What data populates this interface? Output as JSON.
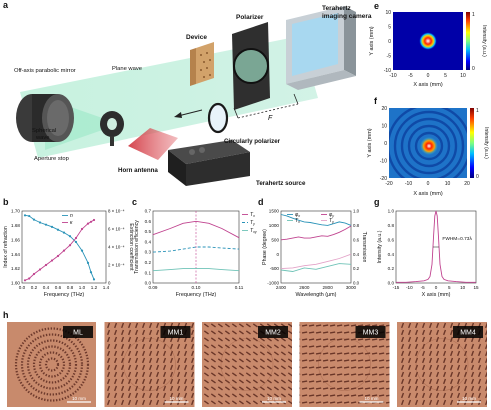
{
  "panel_letters": [
    "a",
    "b",
    "c",
    "d",
    "e",
    "f",
    "g",
    "h"
  ],
  "setup": {
    "labels": {
      "device": "Device",
      "polarizer": "Polarizer",
      "camera": "Terahertz\nimaging camera",
      "mirror": "Off-axis parabolic mirror",
      "plane_wave": "Plane wave",
      "spherical_wave": "Spherical\nwave",
      "aperture": "Aperture stop",
      "horn": "Horn antenna",
      "circ_polarizer": "Circularly polarizer",
      "source": "Terahertz source",
      "distance": "F"
    }
  },
  "map_e": {
    "xlabel": "X axis (mm)",
    "ylabel": "Y axis (mm)",
    "cbar_label": "Intensity (a.u.)",
    "xticks": [
      "-10",
      "-5",
      "0",
      "5",
      "10"
    ],
    "yticks": [
      "10",
      "5",
      "0",
      "-5",
      "-10"
    ],
    "cbar_ticks": [
      "1",
      "0"
    ]
  },
  "map_f": {
    "xlabel": "X axis (mm)",
    "ylabel": "Y axis (mm)",
    "cbar_label": "Intensity (a.u.)",
    "xticks": [
      "-20",
      "-10",
      "0",
      "10",
      "20"
    ],
    "yticks": [
      "20",
      "10",
      "0",
      "-10",
      "-20"
    ],
    "cbar_ticks": [
      "1",
      "0"
    ]
  },
  "chart_data": [
    {
      "id": "b",
      "type": "line",
      "xlabel": "Frequency (THz)",
      "ylabel": "Index of refraction",
      "y2label": "Extinction coefficient",
      "xlim": [
        0.0,
        1.4
      ],
      "ylim": [
        1.6,
        1.7
      ],
      "y2lim": [
        0.0,
        0.0008
      ],
      "xticks": [
        "0.0",
        "0.2",
        "0.4",
        "0.6",
        "0.8",
        "1.0",
        "1.2",
        "1.4"
      ],
      "yticks": [
        "1.70",
        "1.68",
        "1.66",
        "1.64",
        "1.62",
        "1.60"
      ],
      "y2ticks": [
        "8 × 10⁻⁴",
        "6 × 10⁻⁴",
        "4 × 10⁻⁴",
        "2 × 10⁻⁴",
        "0"
      ],
      "series": [
        {
          "name": "n",
          "axis": "left",
          "color": "#2a93b8",
          "x": [
            0.05,
            0.12,
            0.2,
            0.3,
            0.4,
            0.5,
            0.6,
            0.7,
            0.8,
            0.9,
            1.0,
            1.1,
            1.15,
            1.2
          ],
          "y": [
            1.694,
            1.693,
            1.688,
            1.684,
            1.681,
            1.678,
            1.674,
            1.67,
            1.665,
            1.657,
            1.645,
            1.628,
            1.615,
            1.605
          ]
        },
        {
          "name": "κ",
          "axis": "right",
          "color": "#c0438f",
          "x": [
            0.05,
            0.12,
            0.2,
            0.3,
            0.4,
            0.5,
            0.6,
            0.7,
            0.8,
            0.9,
            1.0,
            1.1,
            1.15,
            1.2
          ],
          "y": [
            3e-05,
            5e-05,
            0.0001,
            0.00015,
            0.0002,
            0.00025,
            0.0003,
            0.00036,
            0.00042,
            0.0005,
            0.0006,
            0.00066,
            0.00068,
            0.0007
          ]
        }
      ]
    },
    {
      "id": "c",
      "type": "line",
      "xlabel": "Frequency (THz)",
      "ylabel": "Transmission efficiency",
      "xlim": [
        0.09,
        0.11
      ],
      "ylim": [
        0.0,
        0.7
      ],
      "xticks": [
        "0.09",
        "0.10",
        "0.11"
      ],
      "yticks": [
        "0.7",
        "0.6",
        "0.5",
        "0.4",
        "0.3",
        "0.2",
        "0.1",
        "0.0"
      ],
      "marker_x": 0.1,
      "series": [
        {
          "name": "T",
          "sub": "x",
          "color": "#c0438f",
          "dash": "",
          "x": [
            0.09,
            0.094,
            0.097,
            0.1,
            0.103,
            0.106,
            0.11
          ],
          "y": [
            0.47,
            0.53,
            0.58,
            0.6,
            0.58,
            0.53,
            0.44
          ]
        },
        {
          "name": "T",
          "sub": "y",
          "color": "#2a93b8",
          "dash": "3,2",
          "x": [
            0.09,
            0.094,
            0.097,
            0.1,
            0.103,
            0.106,
            0.11
          ],
          "y": [
            0.3,
            0.31,
            0.33,
            0.35,
            0.35,
            0.34,
            0.33
          ]
        },
        {
          "name": "T",
          "sub": "xy",
          "color": "#6fc3b7",
          "dash": "",
          "x": [
            0.09,
            0.094,
            0.097,
            0.1,
            0.103,
            0.106,
            0.11
          ],
          "y": [
            0.12,
            0.13,
            0.14,
            0.14,
            0.14,
            0.13,
            0.12
          ]
        }
      ]
    },
    {
      "id": "d",
      "type": "line",
      "xlabel": "Wavelength (μm)",
      "ylabel": "Phase (degree)",
      "y2label": "Transmission",
      "xlim": [
        2400,
        3000
      ],
      "ylim": [
        -1000,
        1500
      ],
      "y2lim": [
        0.0,
        1.0
      ],
      "xticks": [
        "2400",
        "2600",
        "2800",
        "3000"
      ],
      "yticks": [
        "1500",
        "1000",
        "500",
        "0",
        "-500",
        "-1000"
      ],
      "y2ticks": [
        "1.0",
        "0.8",
        "0.6",
        "0.4",
        "0.2",
        "0.0"
      ],
      "series": [
        {
          "name": "φ",
          "sub": "x",
          "axis": "left",
          "color": "#2a93b8",
          "x": [
            2400,
            2450,
            2500,
            2550,
            2600,
            2650,
            2700,
            2750,
            2800,
            2850,
            2900,
            2950,
            3000
          ],
          "y": [
            1380,
            1330,
            1250,
            1180,
            1120,
            1100,
            1060,
            1020,
            1000,
            1060,
            1120,
            1080,
            1000
          ]
        },
        {
          "name": "φ",
          "sub": "y",
          "axis": "left",
          "color": "#c0438f",
          "x": [
            2400,
            2450,
            2500,
            2550,
            2600,
            2650,
            2700,
            2750,
            2800,
            2850,
            2900,
            2950,
            3000
          ],
          "y": [
            500,
            520,
            560,
            600,
            560,
            560,
            600,
            640,
            620,
            680,
            760,
            860,
            980
          ]
        },
        {
          "name": "T",
          "sub": "x",
          "axis": "right",
          "color": "#6fc3b7",
          "x": [
            2400,
            2500,
            2600,
            2700,
            2800,
            2900,
            3000
          ],
          "y": [
            0.18,
            0.16,
            0.21,
            0.19,
            0.23,
            0.27,
            0.26
          ]
        },
        {
          "name": "T",
          "sub": "y",
          "axis": "right",
          "color": "#e3a3c8",
          "x": [
            2400,
            2500,
            2600,
            2700,
            2800,
            2900,
            3000
          ],
          "y": [
            0.2,
            0.21,
            0.24,
            0.26,
            0.3,
            0.34,
            0.4
          ]
        }
      ]
    },
    {
      "id": "g",
      "type": "line",
      "xlabel": "X axis (mm)",
      "ylabel": "Intensity (a.u.)",
      "xlim": [
        -20,
        20
      ],
      "ylim": [
        0.0,
        1.0
      ],
      "xticks": [
        "-15",
        "-10",
        "-5",
        "0",
        "5",
        "10",
        "15"
      ],
      "yticks": [
        "1.0",
        "0.8",
        "0.6",
        "0.4",
        "0.2",
        "0.0"
      ],
      "annotation": "FWHM=0.73λ",
      "series": [
        {
          "name": "",
          "color": "#c0438f",
          "x": [
            -20,
            -15,
            -10,
            -6,
            -4,
            -3,
            -2,
            -1.2,
            -0.6,
            0,
            0.6,
            1.2,
            2,
            3,
            4,
            6,
            10,
            15,
            20
          ],
          "y": [
            0.01,
            0.01,
            0.02,
            0.03,
            0.05,
            0.09,
            0.26,
            0.66,
            0.93,
            1.0,
            0.93,
            0.66,
            0.26,
            0.09,
            0.05,
            0.03,
            0.02,
            0.01,
            0.01
          ]
        }
      ]
    }
  ],
  "samples": [
    {
      "label": "ML",
      "scalebar": "10 mm"
    },
    {
      "label": "MM1",
      "scalebar": "10 mm"
    },
    {
      "label": "MM2",
      "scalebar": "10 mm"
    },
    {
      "label": "MM3",
      "scalebar": "10 mm"
    },
    {
      "label": "MM4",
      "scalebar": "10 mm"
    }
  ],
  "colors": {
    "teal": "#2a93b8",
    "magenta": "#c0438f",
    "sample_bg": "#c88a6c",
    "sample_pattern": "#6e3a2c"
  }
}
